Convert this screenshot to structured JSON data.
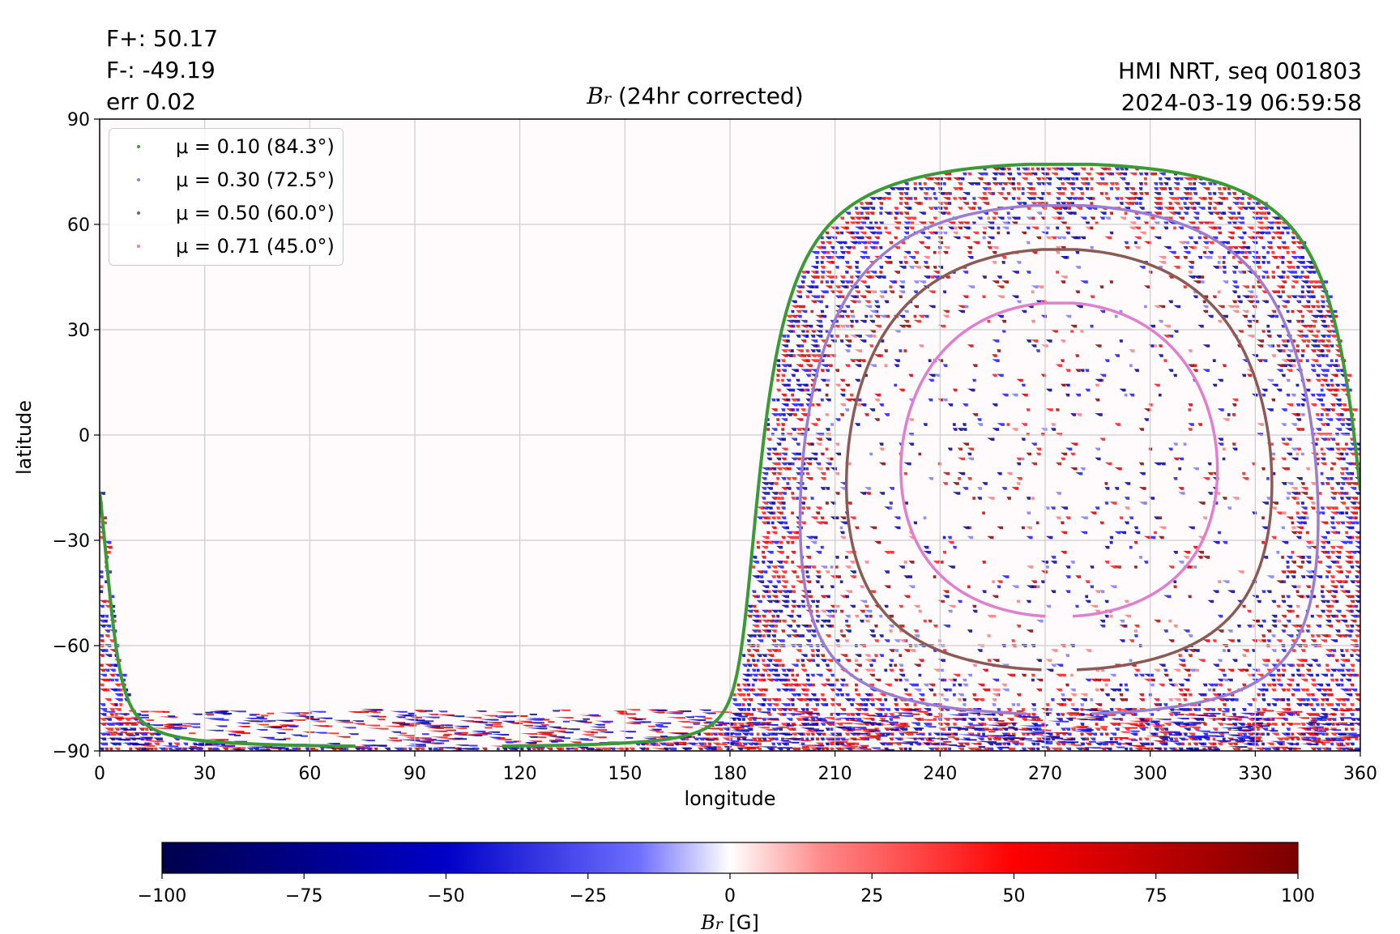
{
  "info_left": [
    "F+: 50.17",
    "F-: -49.19",
    "err 0.02"
  ],
  "info_right": [
    "HMI NRT, seq 001803",
    "2024-03-19 06:59:58"
  ],
  "colors": {
    "grid": "#cccccc",
    "mu_010": "#3a9a35",
    "mu_030": "#9b7ccf",
    "mu_050": "#8b5a55",
    "mu_071": "#e07fcf",
    "cmap_neg": "#00004d",
    "cmap_mid": "#ffffff",
    "cmap_pos": "#7a0000"
  },
  "chart_data": {
    "type": "heatmap",
    "title_symbol": "B",
    "title_sub": "r",
    "title_text": "(24hr corrected)",
    "xlabel": "longitude",
    "ylabel": "latitude",
    "xlim": [
      0,
      360
    ],
    "ylim": [
      -90,
      90
    ],
    "xticks": [
      "0",
      "30",
      "60",
      "90",
      "120",
      "150",
      "180",
      "210",
      "240",
      "270",
      "300",
      "330",
      "360"
    ],
    "yticks": [
      "90",
      "60",
      "30",
      "0",
      "−30",
      "−60",
      "−90"
    ],
    "grid": true,
    "legend_position": "top-left",
    "disk_center_longitude": 274,
    "disk_center_latitude": -7,
    "series": [
      {
        "name": "μ = 0.10 (84.3°)",
        "mu": 0.1,
        "angle_deg": 84.3,
        "color": "#3a9a35"
      },
      {
        "name": "μ = 0.30 (72.5°)",
        "mu": 0.3,
        "angle_deg": 72.5,
        "color": "#9b7ccf"
      },
      {
        "name": "μ = 0.50 (60.0°)",
        "mu": 0.5,
        "angle_deg": 60.0,
        "color": "#8b5a55"
      },
      {
        "name": "μ = 0.71 (45.0°)",
        "mu": 0.71,
        "angle_deg": 45.0,
        "color": "#e07fcf"
      }
    ],
    "colorbar": {
      "range": [
        -100,
        100
      ],
      "ticks": [
        "−100",
        "−75",
        "−50",
        "−25",
        "0",
        "25",
        "50",
        "75",
        "100"
      ],
      "label_symbol": "B",
      "label_sub": "r",
      "label_unit": "[G]"
    }
  }
}
